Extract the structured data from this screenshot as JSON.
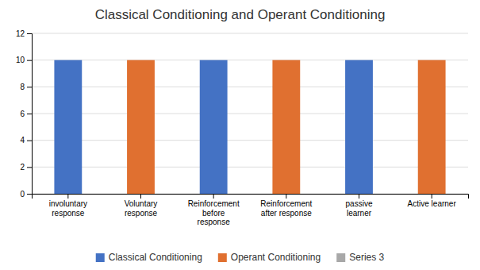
{
  "chart_data": {
    "type": "bar",
    "title": "Classical Conditioning and Operant Conditioning",
    "categories": [
      "involuntary\nresponse",
      "Voluntary\nresponse",
      "Reinforcement\nbefore\nresponse",
      "Reinforcement\nafter response",
      "passive\nlearner",
      "Active learner"
    ],
    "series": [
      {
        "name": "Classical Conditioning",
        "color": "#4472C4",
        "values": [
          10,
          null,
          10,
          null,
          10,
          null
        ]
      },
      {
        "name": "Operant Conditioning",
        "color": "#E07030",
        "values": [
          null,
          10,
          null,
          10,
          null,
          10
        ]
      },
      {
        "name": "Series 3",
        "color": "#A8A8A8",
        "values": [
          null,
          null,
          null,
          null,
          null,
          null
        ]
      }
    ],
    "ylim": [
      0,
      12
    ],
    "yticks": [
      0,
      2,
      4,
      6,
      8,
      10,
      12
    ],
    "grid": true,
    "legend": "bottom"
  }
}
